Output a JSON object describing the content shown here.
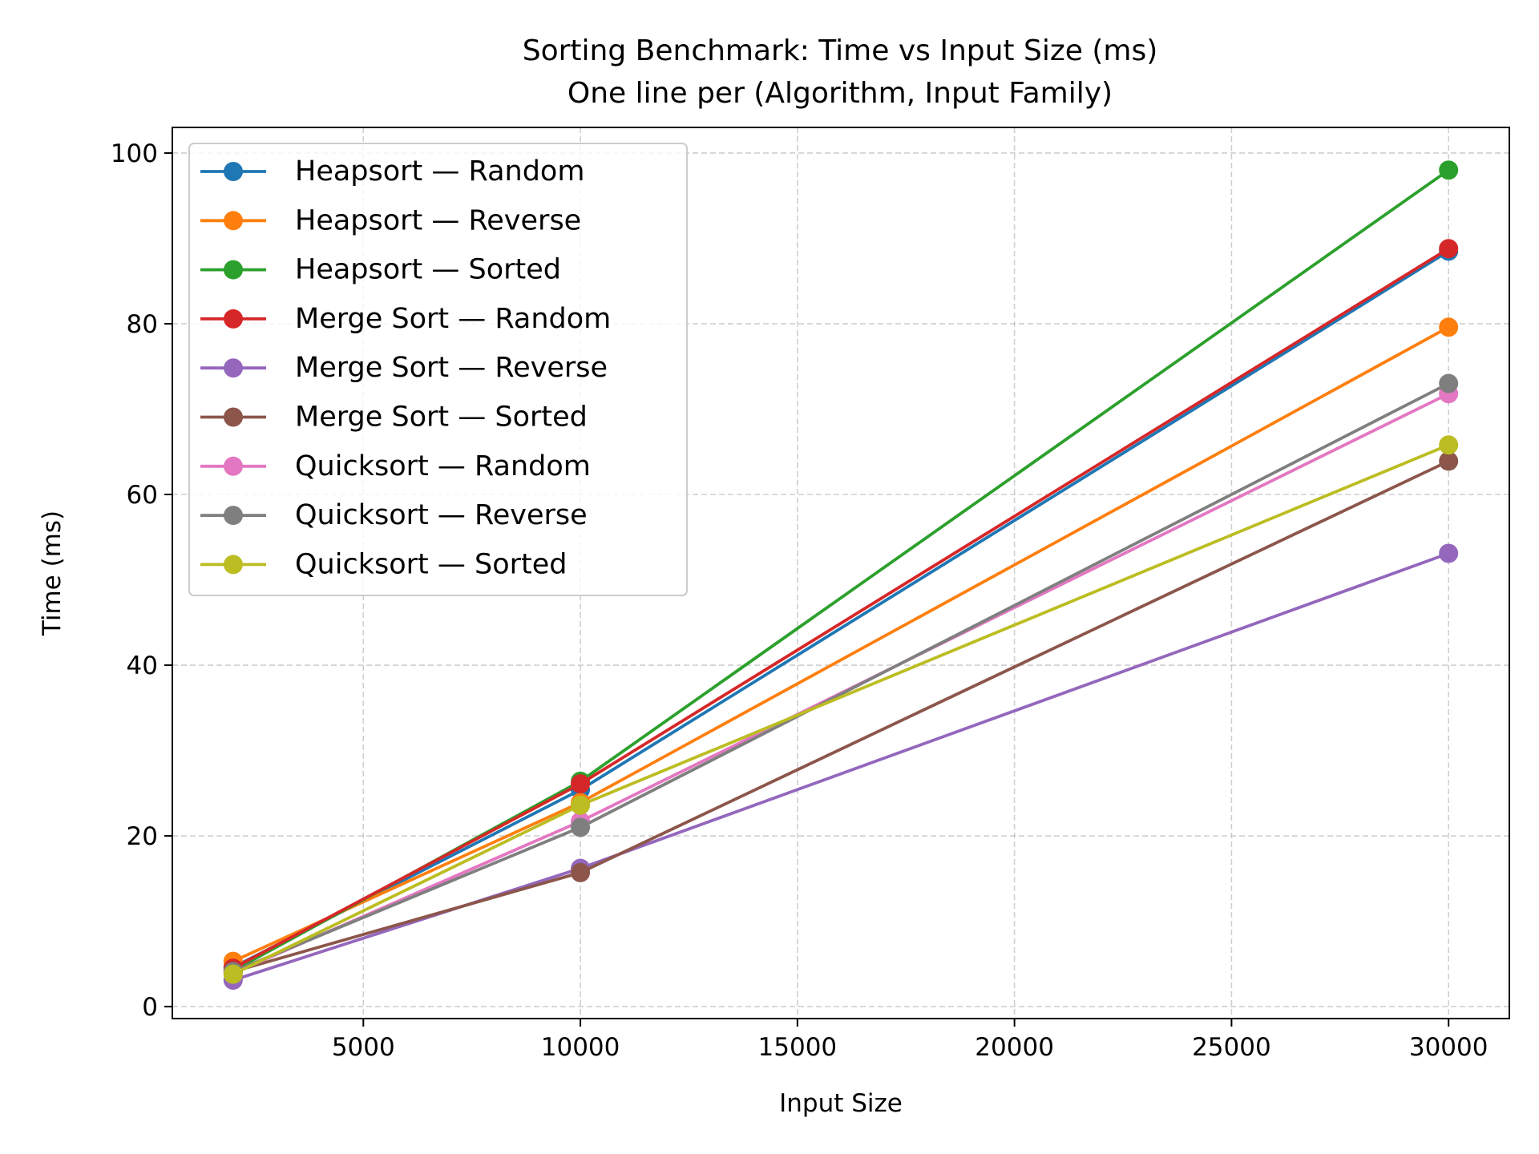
{
  "chart_data": {
    "type": "line",
    "title": "Sorting Benchmark: Time vs Input Size (ms)",
    "subtitle": "One line per (Algorithm, Input Family)",
    "xlabel": "Input Size",
    "ylabel": "Time (ms)",
    "xlim": [
      600,
      31400
    ],
    "ylim": [
      -1.4,
      103.0
    ],
    "xticks": [
      5000,
      10000,
      15000,
      20000,
      25000,
      30000
    ],
    "yticks": [
      0,
      20,
      40,
      60,
      80,
      100
    ],
    "grid": true,
    "legend_position": "top-left",
    "x": [
      2000,
      10000,
      30000
    ],
    "series": [
      {
        "name": "Heapsort — Random",
        "color": "#1f77b4",
        "values": [
          4.6,
          25.4,
          88.5
        ]
      },
      {
        "name": "Heapsort — Reverse",
        "color": "#ff7f0e",
        "values": [
          5.3,
          23.9,
          79.6
        ]
      },
      {
        "name": "Heapsort — Sorted",
        "color": "#2ca02c",
        "values": [
          4.2,
          26.4,
          98.0
        ]
      },
      {
        "name": "Merge Sort — Random",
        "color": "#d62728",
        "values": [
          4.5,
          26.1,
          88.8
        ]
      },
      {
        "name": "Merge Sort — Reverse",
        "color": "#9467bd",
        "values": [
          3.1,
          16.2,
          53.1
        ]
      },
      {
        "name": "Merge Sort — Sorted",
        "color": "#8c564b",
        "values": [
          4.1,
          15.7,
          63.9
        ]
      },
      {
        "name": "Quicksort — Random",
        "color": "#e377c2",
        "values": [
          3.9,
          21.7,
          71.8
        ]
      },
      {
        "name": "Quicksort — Reverse",
        "color": "#7f7f7f",
        "values": [
          4.1,
          21.0,
          73.0
        ]
      },
      {
        "name": "Quicksort — Sorted",
        "color": "#bcbd22",
        "values": [
          3.8,
          23.6,
          65.8
        ]
      }
    ]
  }
}
